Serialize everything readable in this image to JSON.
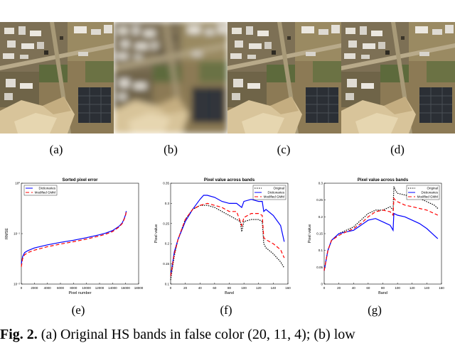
{
  "panel_labels": [
    "(a)",
    "(b)",
    "(c)",
    "(d)",
    "(e)",
    "(f)",
    "(g)"
  ],
  "caption": {
    "label": "Fig. 2.",
    "text": "(a) Original HS bands in false color (20, 11, 4); (b) low"
  },
  "chart_data": [
    {
      "type": "line",
      "title": "Sorted pixel error",
      "xlabel": "Pixel number",
      "ylabel": "RMSE",
      "xlim": [
        0,
        18000
      ],
      "ylim": [
        0.01,
        1
      ],
      "yscale": "log",
      "xticks": [
        "0",
        "2000",
        "4000",
        "6000",
        "8000",
        "10000",
        "12000",
        "14000",
        "16000",
        "18000"
      ],
      "yticks": [
        "10⁻²",
        "10⁻¹",
        "10⁰"
      ],
      "legend": "top-left",
      "series": [
        {
          "name": "Dictionaries",
          "color": "#0000ff",
          "style": "solid",
          "x": [
            0,
            200,
            500,
            1000,
            2000,
            3000,
            4000,
            6000,
            8000,
            10000,
            12000,
            13000,
            14000,
            15000,
            15500,
            15800,
            16000,
            16100
          ],
          "y": [
            0.025,
            0.035,
            0.042,
            0.046,
            0.052,
            0.056,
            0.06,
            0.067,
            0.074,
            0.083,
            0.095,
            0.103,
            0.115,
            0.14,
            0.165,
            0.2,
            0.24,
            0.28
          ]
        },
        {
          "name": "Modified GMM",
          "color": "#ff0000",
          "style": "dashed",
          "x": [
            0,
            200,
            500,
            1000,
            2000,
            3000,
            4000,
            6000,
            8000,
            10000,
            12000,
            13000,
            14000,
            15000,
            15500,
            15800,
            16000,
            16100
          ],
          "y": [
            0.022,
            0.032,
            0.038,
            0.042,
            0.047,
            0.051,
            0.055,
            0.062,
            0.069,
            0.078,
            0.09,
            0.098,
            0.11,
            0.135,
            0.16,
            0.195,
            0.235,
            0.27
          ]
        }
      ]
    },
    {
      "type": "line",
      "title": "Pixel value across bands",
      "xlabel": "Band",
      "ylabel": "Pixel value",
      "xlim": [
        0,
        160
      ],
      "ylim": [
        0.1,
        0.35
      ],
      "xticks": [
        "0",
        "20",
        "40",
        "60",
        "80",
        "100",
        "120",
        "140",
        "160"
      ],
      "yticks": [
        "0.1",
        "0.15",
        "0.2",
        "0.25",
        "0.3",
        "0.35"
      ],
      "legend": "top-right",
      "series": [
        {
          "name": "Original",
          "color": "#000000",
          "style": "dotted",
          "x": [
            0,
            5,
            10,
            20,
            30,
            40,
            50,
            60,
            70,
            80,
            90,
            95,
            97,
            100,
            110,
            120,
            125,
            127,
            130,
            140,
            150,
            155
          ],
          "y": [
            0.11,
            0.17,
            0.21,
            0.26,
            0.285,
            0.295,
            0.295,
            0.29,
            0.28,
            0.27,
            0.26,
            0.255,
            0.23,
            0.255,
            0.26,
            0.26,
            0.255,
            0.2,
            0.19,
            0.175,
            0.155,
            0.14
          ]
        },
        {
          "name": "Dictionaries",
          "color": "#0000ff",
          "style": "solid",
          "x": [
            0,
            5,
            10,
            20,
            30,
            40,
            45,
            50,
            60,
            70,
            80,
            90,
            97,
            100,
            110,
            120,
            125,
            127,
            130,
            140,
            150,
            155
          ],
          "y": [
            0.12,
            0.18,
            0.21,
            0.255,
            0.285,
            0.31,
            0.32,
            0.32,
            0.315,
            0.305,
            0.3,
            0.3,
            0.29,
            0.305,
            0.31,
            0.305,
            0.305,
            0.28,
            0.285,
            0.27,
            0.245,
            0.205
          ]
        },
        {
          "name": "Modified GMM",
          "color": "#ff0000",
          "style": "dashed",
          "x": [
            0,
            5,
            10,
            20,
            30,
            40,
            50,
            60,
            70,
            80,
            90,
            97,
            100,
            110,
            120,
            125,
            127,
            130,
            140,
            150,
            155
          ],
          "y": [
            0.12,
            0.175,
            0.21,
            0.26,
            0.285,
            0.295,
            0.3,
            0.295,
            0.29,
            0.28,
            0.28,
            0.245,
            0.265,
            0.275,
            0.275,
            0.27,
            0.215,
            0.21,
            0.2,
            0.185,
            0.165
          ]
        }
      ]
    },
    {
      "type": "line",
      "title": "Pixel value across bands",
      "xlabel": "Band",
      "ylabel": "Pixel value",
      "xlim": [
        0,
        160
      ],
      "ylim": [
        0,
        0.3
      ],
      "xticks": [
        "0",
        "20",
        "40",
        "60",
        "80",
        "100",
        "120",
        "140",
        "160"
      ],
      "yticks": [
        "0",
        "0.05",
        "0.1",
        "0.15",
        "0.2",
        "0.25",
        "0.3"
      ],
      "legend": "top-right",
      "series": [
        {
          "name": "Original",
          "color": "#000000",
          "style": "dotted",
          "x": [
            0,
            5,
            10,
            20,
            30,
            40,
            50,
            60,
            70,
            80,
            90,
            94,
            95,
            97,
            100,
            110,
            120,
            130,
            140,
            150,
            155
          ],
          "y": [
            0.04,
            0.1,
            0.13,
            0.15,
            0.16,
            0.17,
            0.19,
            0.21,
            0.22,
            0.22,
            0.23,
            0.22,
            0.29,
            0.28,
            0.27,
            0.265,
            0.26,
            0.255,
            0.245,
            0.235,
            0.225
          ]
        },
        {
          "name": "Dictionaries",
          "color": "#0000ff",
          "style": "solid",
          "x": [
            0,
            5,
            10,
            20,
            30,
            40,
            50,
            60,
            70,
            80,
            90,
            94,
            95,
            100,
            110,
            120,
            130,
            140,
            150,
            155
          ],
          "y": [
            0.04,
            0.1,
            0.13,
            0.15,
            0.155,
            0.16,
            0.175,
            0.19,
            0.195,
            0.185,
            0.175,
            0.16,
            0.21,
            0.205,
            0.2,
            0.19,
            0.18,
            0.165,
            0.145,
            0.135
          ]
        },
        {
          "name": "Modified GMM",
          "color": "#ff0000",
          "style": "dashed",
          "x": [
            0,
            5,
            10,
            20,
            30,
            40,
            50,
            60,
            70,
            80,
            90,
            94,
            95,
            97,
            100,
            110,
            120,
            130,
            140,
            150,
            155
          ],
          "y": [
            0.04,
            0.1,
            0.13,
            0.145,
            0.155,
            0.165,
            0.18,
            0.2,
            0.215,
            0.22,
            0.215,
            0.205,
            0.255,
            0.25,
            0.245,
            0.235,
            0.23,
            0.225,
            0.22,
            0.21,
            0.205
          ]
        }
      ]
    }
  ]
}
